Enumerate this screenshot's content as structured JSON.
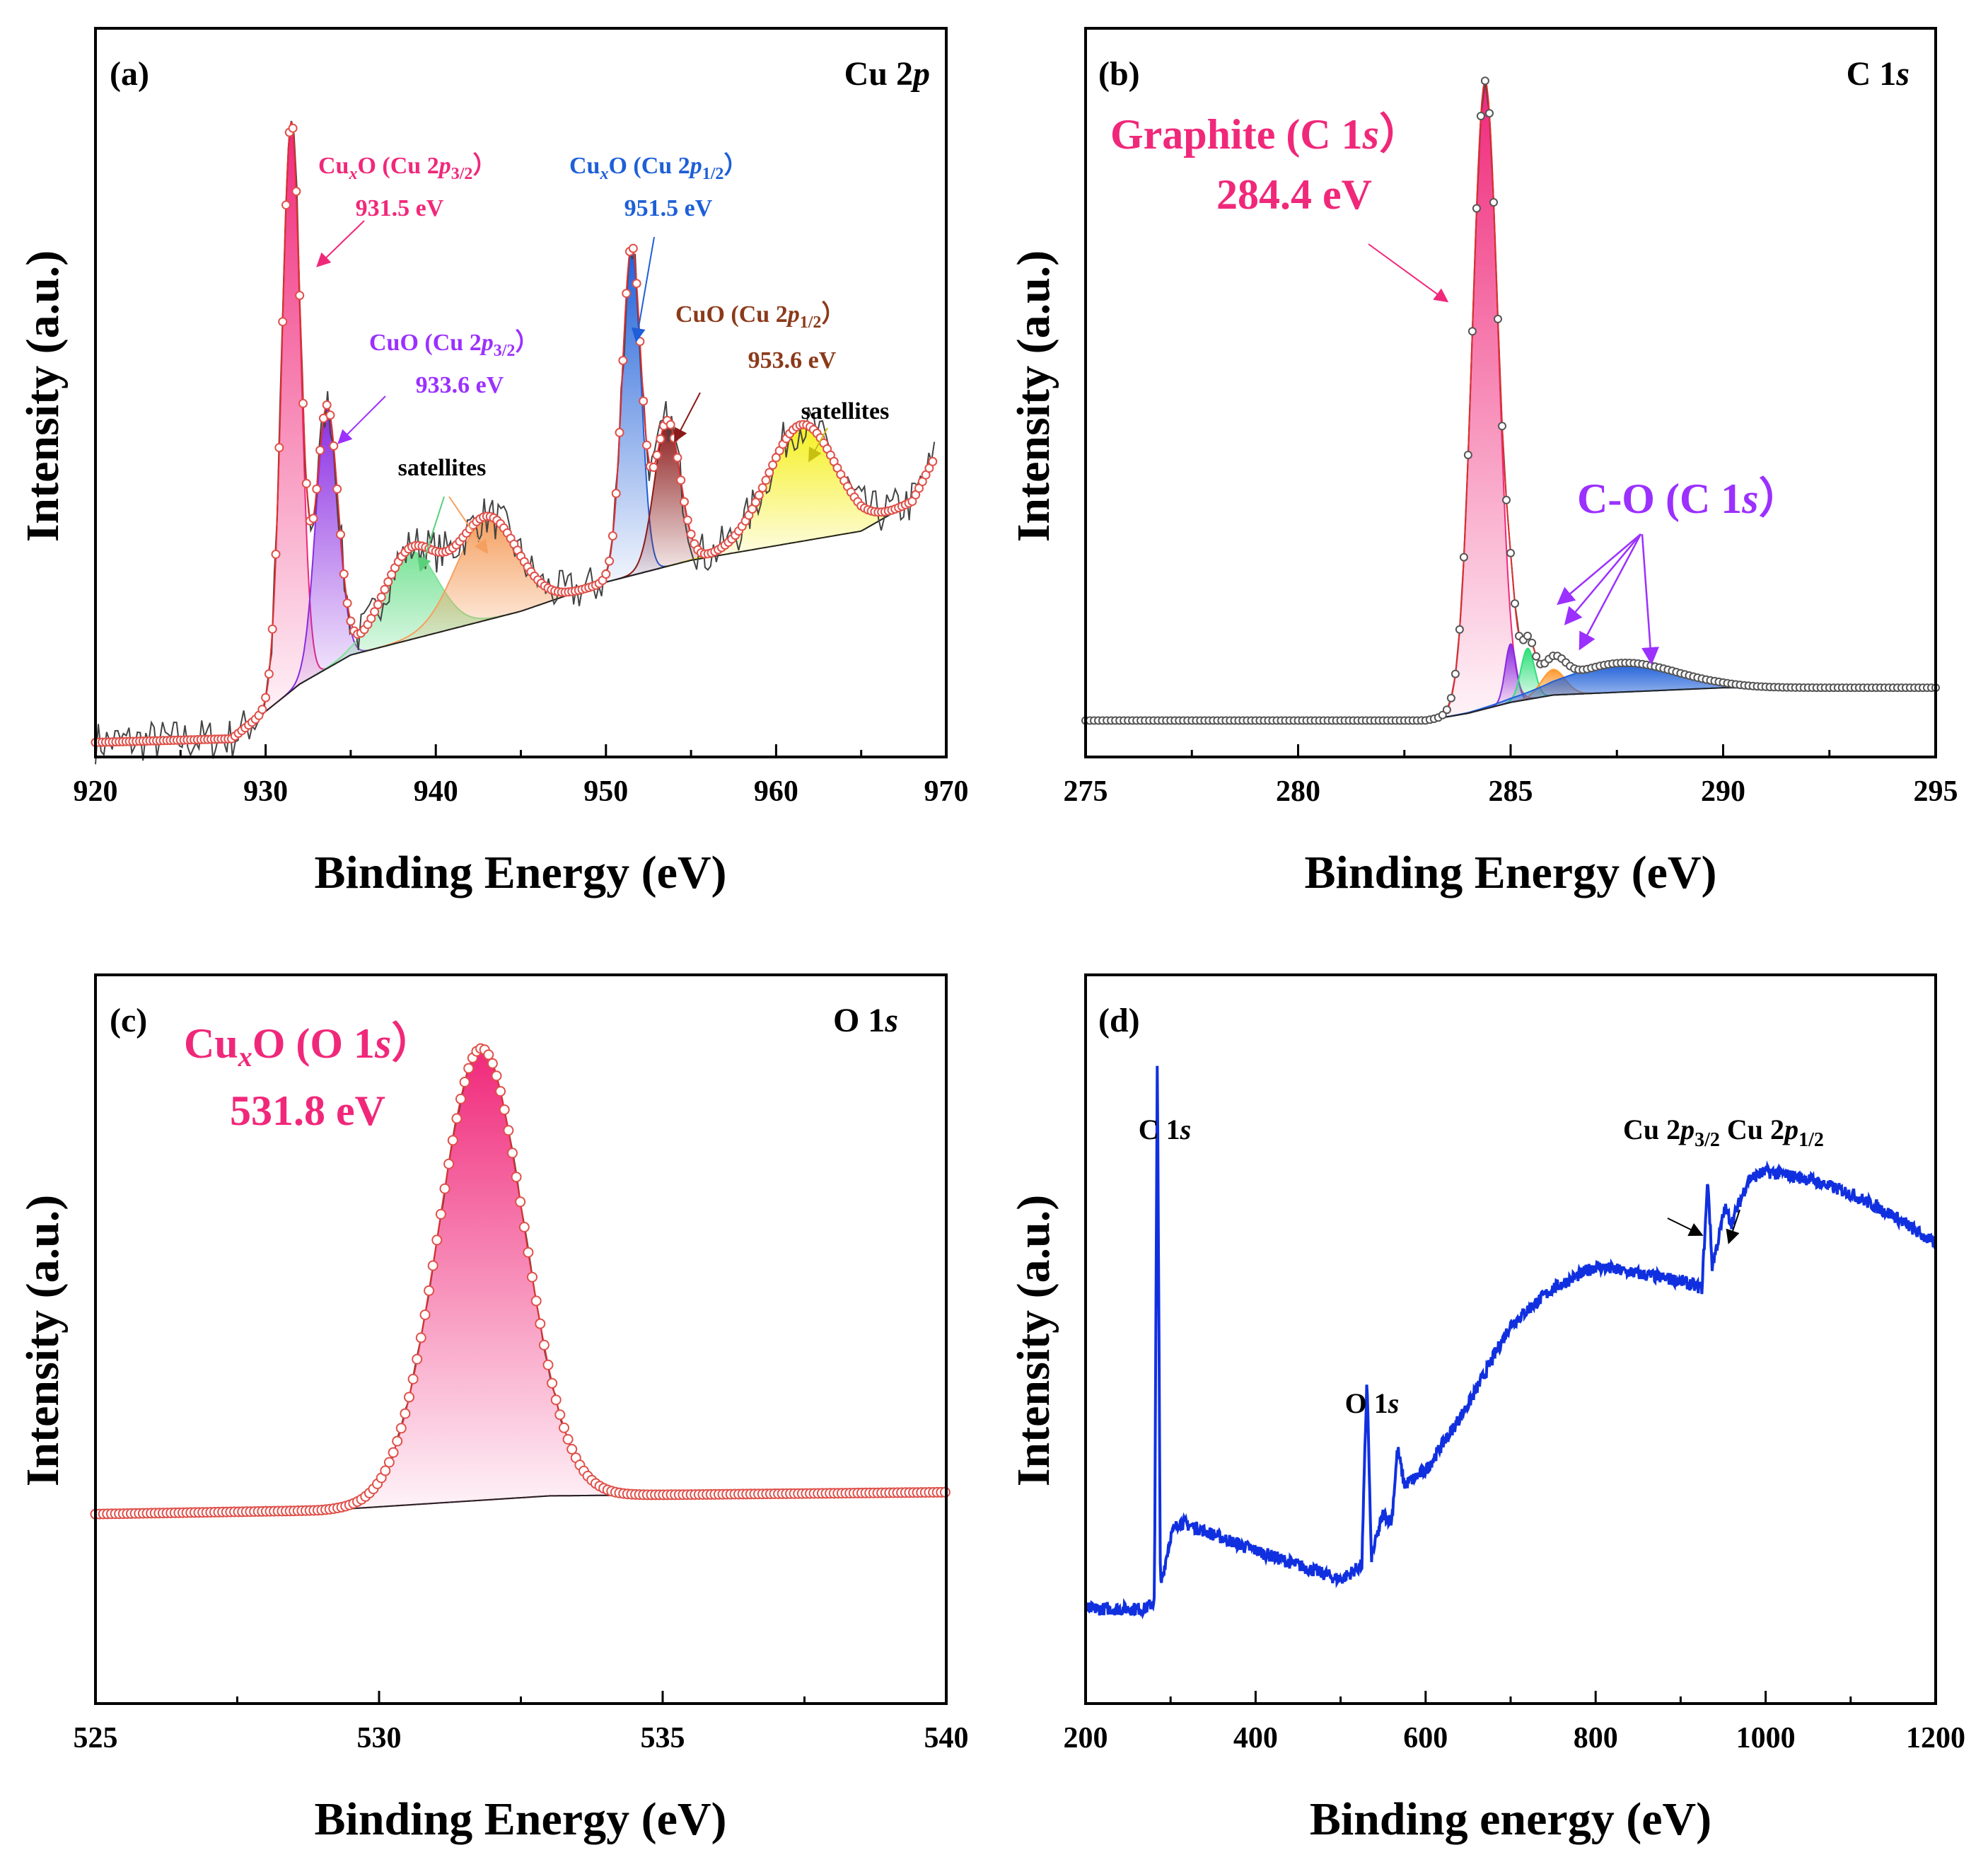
{
  "chart_data": [
    {
      "id": "a",
      "type": "line",
      "panel_label": "(a)",
      "title": "Cu 2p",
      "xlabel": "Binding Energy (eV)",
      "ylabel": "Intensity (a.u.)",
      "xlim": [
        920,
        970
      ],
      "ylim": [
        0,
        1
      ],
      "xticks": [
        920,
        930,
        940,
        950,
        960,
        970
      ],
      "background": [
        [
          920,
          0.02
        ],
        [
          928,
          0.025
        ],
        [
          932,
          0.1
        ],
        [
          935,
          0.14
        ],
        [
          940,
          0.17
        ],
        [
          945,
          0.2
        ],
        [
          950,
          0.24
        ],
        [
          955,
          0.27
        ],
        [
          960,
          0.29
        ],
        [
          965,
          0.31
        ],
        [
          968,
          0.35
        ],
        [
          969.3,
          0.41
        ]
      ],
      "peaks": [
        {
          "name": "CuxO (Cu 2p3/2)",
          "center": 931.5,
          "height": 0.78,
          "width": 0.55,
          "color": "#f0287a"
        },
        {
          "name": "CuO (Cu 2p3/2)",
          "center": 933.6,
          "height": 0.36,
          "width": 0.65,
          "color": "#8a2be2"
        },
        {
          "name": "satellites",
          "center": 938.5,
          "height": 0.12,
          "width": 1.6,
          "color": "#7de39a"
        },
        {
          "name": "satellites",
          "center": 943.0,
          "height": 0.14,
          "width": 1.8,
          "color": "#f5a060"
        },
        {
          "name": "CuxO (Cu 2p1/2)",
          "center": 951.5,
          "height": 0.45,
          "width": 0.55,
          "color": "#1e5fd8"
        },
        {
          "name": "CuO (Cu 2p1/2)",
          "center": 953.6,
          "height": 0.2,
          "width": 0.75,
          "color": "#8b1a1a"
        },
        {
          "name": "satellites",
          "center": 961.5,
          "height": 0.16,
          "width": 2.0,
          "color": "#f5f020"
        }
      ],
      "annotations": [
        {
          "main": "Cu",
          "sub": "x",
          "rest": "O (Cu 2",
          "ital": "p",
          "sub2": "3/2",
          "close": "）",
          "energy": "931.5 eV",
          "color": "#f0287a"
        },
        {
          "main": "CuO (Cu 2",
          "ital": "p",
          "sub2": "3/2",
          "close": "）",
          "energy": "933.6 eV",
          "color": "#9b30ff"
        },
        {
          "main": "Cu",
          "sub": "x",
          "rest": "O (Cu 2",
          "ital": "p",
          "sub2": "1/2",
          "close": "）",
          "energy": "951.5 eV",
          "color": "#1e5fd8"
        },
        {
          "main": "CuO (Cu 2",
          "ital": "p",
          "sub2": "1/2",
          "close": "）",
          "energy": "953.6 eV",
          "color": "#8b3a1a"
        },
        {
          "text": "satellites",
          "color": "#000000"
        },
        {
          "text": "satellites",
          "color": "#000000"
        }
      ]
    },
    {
      "id": "b",
      "type": "line",
      "panel_label": "(b)",
      "title": "C 1s",
      "xlabel": "Binding Energy (eV)",
      "ylabel": "Intensity (a.u.)",
      "xlim": [
        275,
        295
      ],
      "ylim": [
        0,
        1
      ],
      "xticks": [
        275,
        280,
        285,
        290,
        295
      ],
      "background": [
        [
          275,
          0.05
        ],
        [
          283,
          0.05
        ],
        [
          284,
          0.06
        ],
        [
          285,
          0.075
        ],
        [
          286,
          0.085
        ],
        [
          288,
          0.09
        ],
        [
          290,
          0.095
        ],
        [
          295,
          0.095
        ]
      ],
      "peaks": [
        {
          "name": "Graphite (C 1s)",
          "center": 284.4,
          "height": 0.86,
          "width": 0.3,
          "color": "#f0287a"
        },
        {
          "name": "C-O (C 1s)",
          "center": 285.0,
          "height": 0.08,
          "width": 0.13,
          "color": "#8a2be2"
        },
        {
          "name": "C-O (C 1s)",
          "center": 285.4,
          "height": 0.07,
          "width": 0.16,
          "color": "#2ee07a"
        },
        {
          "name": "C-O (C 1s)",
          "center": 286.0,
          "height": 0.035,
          "width": 0.28,
          "color": "#ff9a30"
        },
        {
          "name": "C-O (C 1s)",
          "center": 287.6,
          "height": 0.04,
          "width": 1.3,
          "color": "#1e5fd8"
        }
      ],
      "annotations": [
        {
          "line1": "Graphite (C 1",
          "ital": "s",
          "close": "）",
          "energy": "284.4 eV",
          "color": "#f0287a"
        },
        {
          "line1": "C-O (C 1",
          "ital": "s",
          "close": "）",
          "color": "#9b30ff"
        }
      ]
    },
    {
      "id": "c",
      "type": "line",
      "panel_label": "(c)",
      "title": "O 1s",
      "xlabel": "Binding Energy (eV)",
      "ylabel": "Intensity (a.u.)",
      "xlim": [
        525,
        540
      ],
      "ylim": [
        0,
        1
      ],
      "xticks": [
        525,
        530,
        535,
        540
      ],
      "background": [
        [
          525,
          0.26
        ],
        [
          529,
          0.265
        ],
        [
          533,
          0.285
        ],
        [
          540,
          0.29
        ]
      ],
      "peaks": [
        {
          "name": "CuxO (O 1s)",
          "center": 531.8,
          "height": 0.62,
          "width": 0.75,
          "color": "#f0287a"
        }
      ],
      "annotations": [
        {
          "main": "Cu",
          "sub": "x",
          "rest": "O (O 1",
          "ital": "s",
          "close": "）",
          "energy": "531.8 eV",
          "color": "#f0287a"
        }
      ]
    },
    {
      "id": "d",
      "type": "line",
      "panel_label": "(d)",
      "title": "",
      "xlabel": "Binding energy (eV)",
      "ylabel": "Intensity (a.u.)",
      "xlim": [
        200,
        1200
      ],
      "ylim": [
        0,
        1
      ],
      "xticks": [
        200,
        400,
        600,
        800,
        1000,
        1200
      ],
      "series": [
        {
          "name": "survey",
          "color": "#1030e0",
          "points": [
            [
              200,
              0.13
            ],
            [
              270,
              0.13
            ],
            [
              281,
              0.14
            ],
            [
              284.4,
              0.9
            ],
            [
              288,
              0.16
            ],
            [
              300,
              0.23
            ],
            [
              310,
              0.25
            ],
            [
              400,
              0.21
            ],
            [
              500,
              0.17
            ],
            [
              525,
              0.19
            ],
            [
              531,
              0.45
            ],
            [
              536,
              0.2
            ],
            [
              550,
              0.26
            ],
            [
              560,
              0.25
            ],
            [
              567,
              0.35
            ],
            [
              575,
              0.3
            ],
            [
              600,
              0.32
            ],
            [
              650,
              0.41
            ],
            [
              700,
              0.52
            ],
            [
              750,
              0.57
            ],
            [
              800,
              0.6
            ],
            [
              850,
              0.59
            ],
            [
              900,
              0.58
            ],
            [
              925,
              0.57
            ],
            [
              932,
              0.72
            ],
            [
              937,
              0.6
            ],
            [
              945,
              0.64
            ],
            [
              952,
              0.68
            ],
            [
              960,
              0.66
            ],
            [
              980,
              0.72
            ],
            [
              1000,
              0.73
            ],
            [
              1050,
              0.72
            ],
            [
              1100,
              0.7
            ],
            [
              1150,
              0.67
            ],
            [
              1200,
              0.63
            ]
          ]
        }
      ],
      "annotations": [
        {
          "text": "C 1",
          "ital": "s"
        },
        {
          "text": "O 1",
          "ital": "s"
        },
        {
          "p1": "Cu 2",
          "ital": "p",
          "sub1": "3/2",
          "p2": "Cu 2",
          "sub2": "1/2"
        }
      ]
    }
  ]
}
